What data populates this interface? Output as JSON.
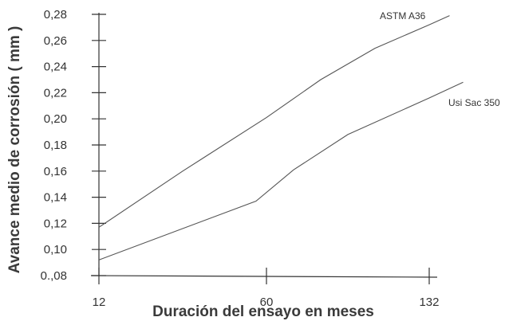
{
  "chart_data": {
    "type": "line",
    "title": "",
    "xlabel": "Duración del ensayo en meses",
    "ylabel": "Avance medio de corrosión ( mm )",
    "x_ticks": [
      "12",
      "60",
      "132"
    ],
    "y_ticks": [
      "0.,08",
      "0,10",
      "0,12",
      "0,14",
      "0,16",
      "0,18",
      "0,20",
      "0,22",
      "0,24",
      "0,26",
      "0,28"
    ],
    "ylim": [
      0.08,
      0.28
    ],
    "grid": false,
    "legend": "none",
    "series": [
      {
        "name": "ASTM A36",
        "color": "#555555",
        "points": [
          {
            "x": 12,
            "y": 0.117
          },
          {
            "x": 36,
            "y": 0.16
          },
          {
            "x": 60,
            "y": 0.201
          },
          {
            "x": 84,
            "y": 0.23
          },
          {
            "x": 108,
            "y": 0.254
          },
          {
            "x": 132,
            "y": 0.272
          },
          {
            "x": 141,
            "y": 0.279
          }
        ]
      },
      {
        "name": "Usi Sac 350",
        "color": "#555555",
        "points": [
          {
            "x": 12,
            "y": 0.092
          },
          {
            "x": 57,
            "y": 0.137
          },
          {
            "x": 72,
            "y": 0.161
          },
          {
            "x": 96,
            "y": 0.188
          },
          {
            "x": 132,
            "y": 0.216
          },
          {
            "x": 147,
            "y": 0.228
          }
        ]
      }
    ]
  }
}
